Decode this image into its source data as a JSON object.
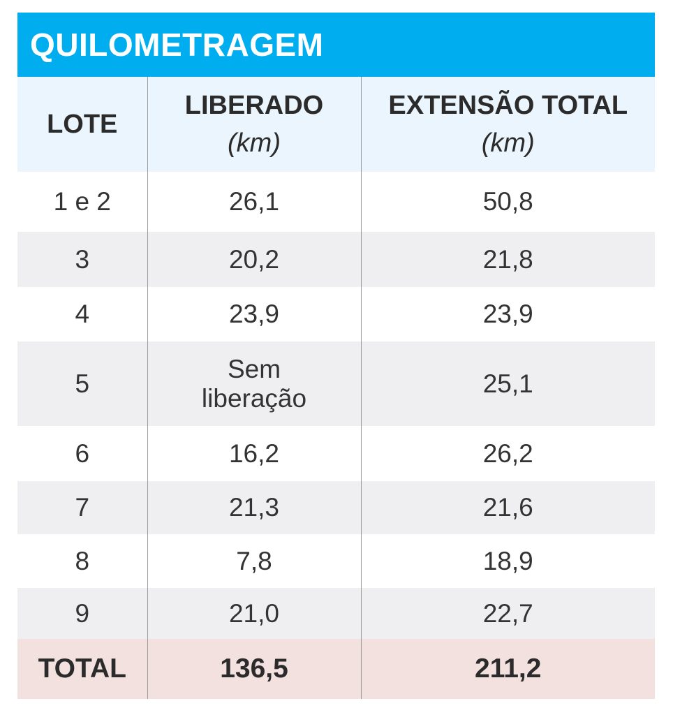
{
  "title": "QUILOMETRAGEM",
  "headers": {
    "lote": "LOTE",
    "liberado": "LIBERADO",
    "liberado_unit": "(km)",
    "extensao": "EXTENSÃO TOTAL",
    "extensao_unit": "(km)"
  },
  "rows": [
    {
      "lote": "1 e 2",
      "liberado": "26,1",
      "total": "50,8"
    },
    {
      "lote": "3",
      "liberado": "20,2",
      "total": "21,8"
    },
    {
      "lote": "4",
      "liberado": "23,9",
      "total": "23,9"
    },
    {
      "lote": "5",
      "liberado_line1": "Sem",
      "liberado_line2": "liberação",
      "total": "25,1"
    },
    {
      "lote": "6",
      "liberado": "16,2",
      "total": "26,2"
    },
    {
      "lote": "7",
      "liberado": "21,3",
      "total": "21,6"
    },
    {
      "lote": "8",
      "liberado": "7,8",
      "total": "18,9"
    },
    {
      "lote": "9",
      "liberado": "21,0",
      "total": "22,7"
    }
  ],
  "total_row": {
    "label": "TOTAL",
    "liberado": "136,5",
    "total": "211,2"
  },
  "colors": {
    "title_bg": "#00adee",
    "header_bg": "#ebf5fd",
    "stripe_bg": "#efeff1",
    "total_bg": "#f2e1df"
  }
}
